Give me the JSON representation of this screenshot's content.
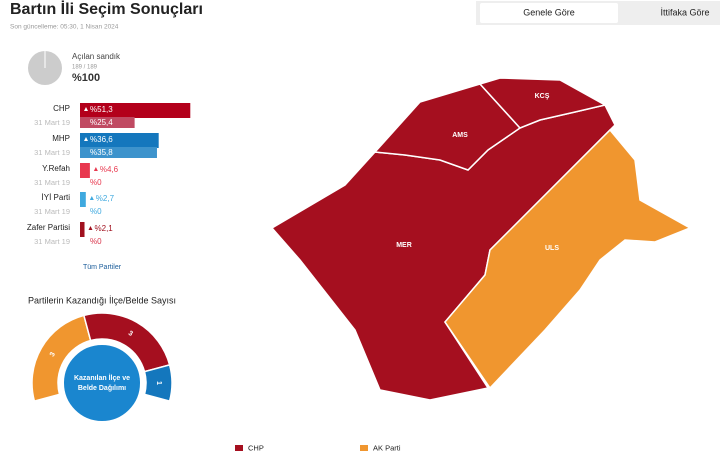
{
  "header": {
    "title": "Bartın İli Seçim Sonuçları",
    "updated": "Son güncelleme: 05:30, 1 Nisan 2024"
  },
  "tabs": [
    "Genele Göre",
    "İttifaka Göre"
  ],
  "ballot_boxes": {
    "label": "Açılan sandık",
    "count": "189 / 189",
    "percent": "%100"
  },
  "parties": [
    {
      "name": "CHP",
      "color": "#b3001b",
      "previous_color": "#c04a62",
      "values": [
        51.3,
        25.4
      ],
      "value_labels": [
        "%51,3",
        "%25,4"
      ],
      "previous_label": "31 Mart 19"
    },
    {
      "name": "MHP",
      "color": "#1477bd",
      "previous_color": "#3d93cc",
      "values": [
        36.6,
        35.8
      ],
      "value_labels": [
        "%36,6",
        "%35,8"
      ],
      "previous_label": "31 Mart 19"
    },
    {
      "name": "Y.Refah",
      "color": "#e8384f",
      "previous_color": "#e8384f",
      "values": [
        4.6,
        0
      ],
      "value_labels": [
        "%4,6",
        "%0"
      ],
      "previous_label": "31 Mart 19"
    },
    {
      "name": "İYİ Parti",
      "color": "#3fa9df",
      "previous_color": "#3fa9df",
      "values": [
        2.7,
        0
      ],
      "value_labels": [
        "%2,7",
        "%0"
      ],
      "previous_label": "31 Mart 19"
    },
    {
      "name": "Zafer Partisi",
      "color": "#a0101e",
      "previous_color": "#d9364c",
      "values": [
        2.1,
        0
      ],
      "value_labels": [
        "%2,1",
        "%0"
      ],
      "previous_label": "31 Mart 19"
    }
  ],
  "all_parties_link": "Tüm Partiler",
  "wins": {
    "title": "Partilerin Kazandığı İlçe/Belde Sayısı",
    "segments": [
      {
        "color": "#f0962f",
        "value": 3
      },
      {
        "color": "#a50f1f",
        "value": 3
      },
      {
        "color": "#1477bd",
        "value": 1
      }
    ],
    "center_label": [
      "Kazanılan İlçe ve",
      "Belde Dağılımı"
    ]
  },
  "map": {
    "regions": [
      {
        "label": "MER",
        "color": "#a50f1f"
      },
      {
        "label": "AMS",
        "color": "#a50f1f"
      },
      {
        "label": "KCŞ",
        "color": "#a50f1f"
      },
      {
        "label": "ULS",
        "color": "#f0962f"
      }
    ]
  },
  "legend": [
    {
      "name": "CHP",
      "color": "#a50f1f"
    },
    {
      "name": "AK Parti",
      "color": "#f0962f"
    }
  ]
}
